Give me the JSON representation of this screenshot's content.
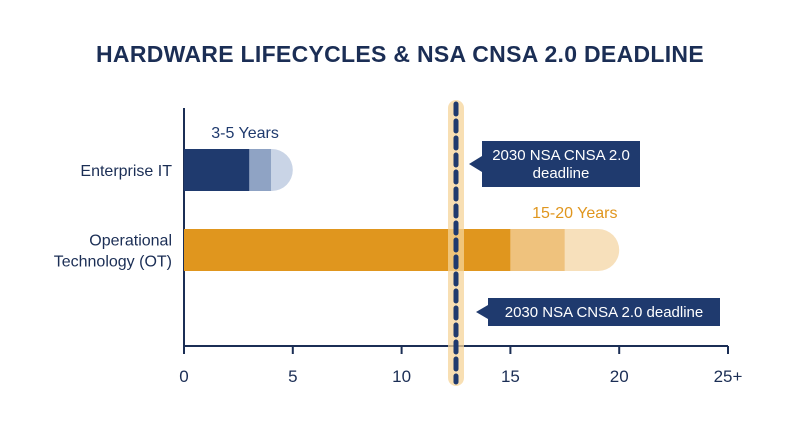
{
  "chart_data": {
    "type": "bar",
    "title": "HARDWARE LIFECYCLES & NSA CNSA 2.0 DEADLINE",
    "orientation": "horizontal",
    "xlabel": "",
    "ylabel": "",
    "xlim": [
      0,
      25
    ],
    "x_ticks": [
      {
        "value": 0,
        "label": "0"
      },
      {
        "value": 5,
        "label": "5"
      },
      {
        "value": 10,
        "label": "10"
      },
      {
        "value": 15,
        "label": "15"
      },
      {
        "value": 20,
        "label": "20"
      },
      {
        "value": 25,
        "label": "25+"
      }
    ],
    "grid": false,
    "categories": [
      {
        "label": "Enterprise IT",
        "range_label": "3-5 Years",
        "min": 3,
        "max": 5,
        "colors": [
          "#1f3a6e",
          "#8fa3c4",
          "#c9d4e6"
        ]
      },
      {
        "label": "Operational\nTechnology (OT)",
        "range_label": "15-20 Years",
        "min": 15,
        "max": 20,
        "colors": [
          "#e0961e",
          "#efc27d",
          "#f7e0bb"
        ]
      }
    ],
    "deadline": {
      "value": 12.5,
      "color": "#1f3a6e",
      "glow": "#f5d49a",
      "annotations": [
        {
          "text": "2030 NSA CNSA 2.0\ndeadline"
        },
        {
          "text": "2030 NSA CNSA 2.0 deadline"
        }
      ]
    }
  }
}
